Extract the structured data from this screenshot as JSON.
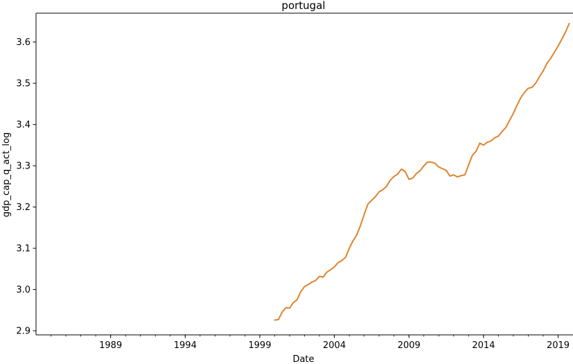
{
  "chart_data": {
    "type": "line",
    "title": "portugal",
    "xlabel": "Date",
    "ylabel": "gdp_cap_q_act_log",
    "x_axis_kind": "date",
    "xlim": [
      "1984-01-01",
      "2020-01-01"
    ],
    "ylim": [
      2.89,
      3.67
    ],
    "x_ticks": [
      {
        "date": "1989-01-01",
        "label": "1989"
      },
      {
        "date": "1994-01-01",
        "label": "1994"
      },
      {
        "date": "1999-01-01",
        "label": "1999"
      },
      {
        "date": "2004-01-01",
        "label": "2004"
      },
      {
        "date": "2009-01-01",
        "label": "2009"
      },
      {
        "date": "2014-01-01",
        "label": "2014"
      },
      {
        "date": "2019-01-01",
        "label": "2019"
      }
    ],
    "y_ticks": [
      2.9,
      3.0,
      3.1,
      3.2,
      3.3,
      3.4,
      3.5,
      3.6
    ],
    "grid": false,
    "series": [
      {
        "color": "#e0832b",
        "x": [
          "2000-01-01",
          "2000-04-01",
          "2000-07-01",
          "2000-10-01",
          "2001-01-01",
          "2001-04-01",
          "2001-07-01",
          "2001-10-01",
          "2002-01-01",
          "2002-04-01",
          "2002-07-01",
          "2002-10-01",
          "2003-01-01",
          "2003-04-01",
          "2003-07-01",
          "2003-10-01",
          "2004-01-01",
          "2004-04-01",
          "2004-07-01",
          "2004-10-01",
          "2005-01-01",
          "2005-04-01",
          "2005-07-01",
          "2005-10-01",
          "2006-01-01",
          "2006-04-01",
          "2006-07-01",
          "2006-10-01",
          "2007-01-01",
          "2007-04-01",
          "2007-07-01",
          "2007-10-01",
          "2008-01-01",
          "2008-04-01",
          "2008-07-01",
          "2008-10-01",
          "2009-01-01",
          "2009-04-01",
          "2009-07-01",
          "2009-10-01",
          "2010-01-01",
          "2010-04-01",
          "2010-07-01",
          "2010-10-01",
          "2011-01-01",
          "2011-04-01",
          "2011-07-01",
          "2011-10-01",
          "2012-01-01",
          "2012-04-01",
          "2012-07-01",
          "2012-10-01",
          "2013-01-01",
          "2013-04-01",
          "2013-07-01",
          "2013-10-01",
          "2014-01-01",
          "2014-04-01",
          "2014-07-01",
          "2014-10-01",
          "2015-01-01",
          "2015-04-01",
          "2015-07-01",
          "2015-10-01",
          "2016-01-01",
          "2016-04-01",
          "2016-07-01",
          "2016-10-01",
          "2017-01-01",
          "2017-04-01",
          "2017-07-01",
          "2017-10-01",
          "2018-01-01",
          "2018-04-01",
          "2018-07-01",
          "2018-10-01",
          "2019-01-01",
          "2019-04-01",
          "2019-07-01",
          "2019-10-01"
        ],
        "y": [
          2.926,
          2.927,
          2.945,
          2.956,
          2.955,
          2.968,
          2.975,
          2.995,
          3.007,
          3.012,
          3.018,
          3.022,
          3.032,
          3.03,
          3.042,
          3.048,
          3.055,
          3.065,
          3.07,
          3.078,
          3.1,
          3.118,
          3.132,
          3.155,
          3.182,
          3.207,
          3.216,
          3.225,
          3.237,
          3.242,
          3.25,
          3.265,
          3.274,
          3.28,
          3.292,
          3.286,
          3.267,
          3.27,
          3.281,
          3.288,
          3.3,
          3.309,
          3.309,
          3.306,
          3.297,
          3.293,
          3.289,
          3.275,
          3.278,
          3.273,
          3.276,
          3.278,
          3.302,
          3.325,
          3.335,
          3.355,
          3.35,
          3.357,
          3.36,
          3.368,
          3.372,
          3.383,
          3.393,
          3.41,
          3.427,
          3.447,
          3.465,
          3.478,
          3.488,
          3.49,
          3.5,
          3.516,
          3.53,
          3.548,
          3.56,
          3.575,
          3.59,
          3.607,
          3.624,
          3.645
        ]
      }
    ]
  }
}
